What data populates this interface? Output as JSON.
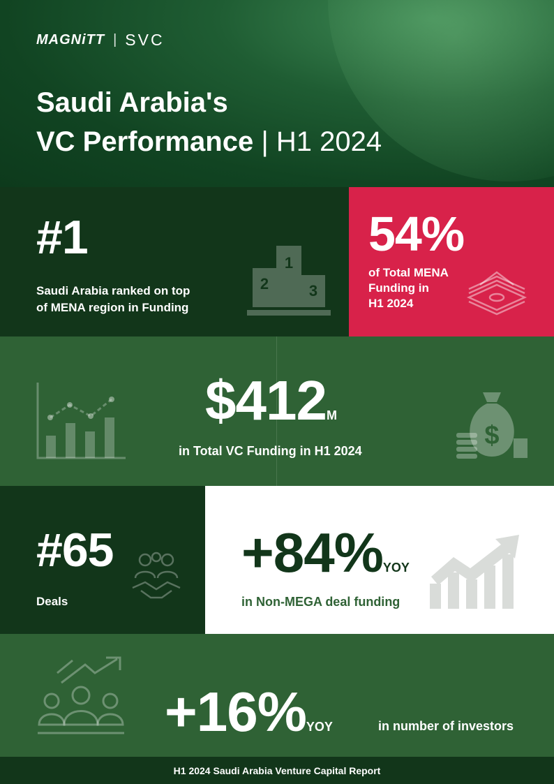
{
  "header": {
    "brand_magnitt": "MAGNiTT",
    "brand_separator": "|",
    "brand_svc": "SVC",
    "title_line1": "Saudi Arabia's",
    "title_line2_bold": "VC Performance",
    "title_line2_sep": " | ",
    "title_line2_period": "H1 2024"
  },
  "rank": {
    "value": "#1",
    "caption_line1": "Saudi Arabia ranked on top",
    "caption_line2": "of MENA region in Funding",
    "podium_labels": [
      "1",
      "2",
      "3"
    ]
  },
  "share": {
    "value": "54%",
    "caption_line1": "of Total MENA",
    "caption_line2": "Funding in",
    "caption_line3": "H1 2024"
  },
  "funding": {
    "value": "$412",
    "unit": "M",
    "caption": "in Total VC Funding in H1 2024"
  },
  "deals": {
    "value": "#65",
    "caption": "Deals"
  },
  "non_mega": {
    "value": "+84%",
    "suffix": "YOY",
    "caption": "in Non-MEGA deal funding"
  },
  "investors": {
    "value": "+16%",
    "suffix": "YOY",
    "caption": "in number of investors"
  },
  "footer": {
    "text": "H1 2024 Saudi Arabia Venture Capital Report"
  },
  "colors": {
    "dark_green": "#12361a",
    "mid_green": "#2f6235",
    "accent_red": "#d8224a",
    "white": "#ffffff"
  }
}
